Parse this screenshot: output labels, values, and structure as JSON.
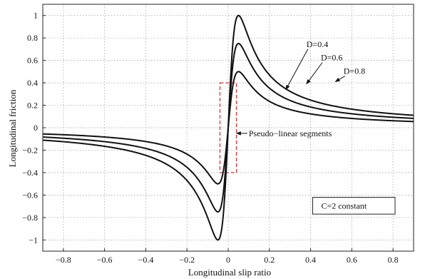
{
  "chart_data": {
    "type": "line",
    "xlabel": "Longitudinal slip ratio",
    "ylabel": "Longitudinal friction",
    "xlim": [
      -0.9,
      0.9
    ],
    "ylim": [
      -1.1,
      1.1
    ],
    "xticks": [
      -0.8,
      -0.6,
      -0.4,
      -0.2,
      0,
      0.2,
      0.4,
      0.6,
      0.8
    ],
    "yticks": [
      -1,
      -0.8,
      -0.6,
      -0.4,
      -0.2,
      0,
      0.2,
      0.4,
      0.6,
      0.8,
      1
    ],
    "xtick_labels": [
      "−0.8",
      "−0.6",
      "−0.4",
      "−0.2",
      "0",
      "0.2",
      "0.4",
      "0.6",
      "0.8"
    ],
    "ytick_labels": [
      "−1",
      "−0.8",
      "−0.6",
      "−0.4",
      "−0.2",
      "0",
      "0.2",
      "0.4",
      "0.6",
      "0.8",
      "1"
    ],
    "grid": true,
    "grid_style": "dotted",
    "series": [
      {
        "name": "D=0.4",
        "peak": 0.5,
        "x": [
          -0.9,
          -0.6,
          -0.4,
          -0.2,
          -0.05,
          0,
          0.05,
          0.2,
          0.4,
          0.6,
          0.9
        ],
        "values": [
          -0.14,
          -0.19,
          -0.25,
          -0.38,
          -0.5,
          0,
          0.5,
          0.38,
          0.25,
          0.19,
          0.14
        ]
      },
      {
        "name": "D=0.6",
        "peak": 0.75,
        "x": [
          -0.9,
          -0.6,
          -0.4,
          -0.2,
          -0.05,
          0,
          0.05,
          0.2,
          0.4,
          0.6,
          0.9
        ],
        "values": [
          -0.21,
          -0.29,
          -0.38,
          -0.57,
          -0.75,
          0,
          0.75,
          0.57,
          0.38,
          0.29,
          0.21
        ]
      },
      {
        "name": "D=0.8",
        "peak": 1.0,
        "x": [
          -0.9,
          -0.6,
          -0.4,
          -0.2,
          -0.05,
          0,
          0.05,
          0.2,
          0.4,
          0.6,
          0.9
        ],
        "values": [
          -0.27,
          -0.38,
          -0.5,
          -0.76,
          -1.0,
          0,
          1.0,
          0.76,
          0.5,
          0.38,
          0.27
        ]
      }
    ],
    "shape_param_C": 2,
    "curve_x_peak": 0.05,
    "series_labels": [
      {
        "text": "D=0.4",
        "x": 0.38,
        "y": 0.72,
        "arrow_to_x": 0.28,
        "arrow_to_y": 0.34
      },
      {
        "text": "D=0.6",
        "x": 0.45,
        "y": 0.6,
        "arrow_to_x": 0.38,
        "arrow_to_y": 0.39
      },
      {
        "text": "D=0.8",
        "x": 0.56,
        "y": 0.48,
        "arrow_to_x": 0.52,
        "arrow_to_y": 0.41
      }
    ],
    "annotations": [
      {
        "text": "Pseudo−linear segments",
        "x": 0.1,
        "y": -0.05,
        "arrow_to_x": 0.04,
        "arrow_to_y": -0.05
      }
    ],
    "highlight_region": {
      "x": [
        -0.04,
        0.04
      ],
      "y": [
        -0.4,
        0.4
      ],
      "color": "#e03030",
      "style": "dashed"
    },
    "legend_box": {
      "text": "C=2 constant",
      "x": [
        0.41,
        0.81
      ],
      "y": [
        -0.62,
        -0.77
      ]
    }
  }
}
